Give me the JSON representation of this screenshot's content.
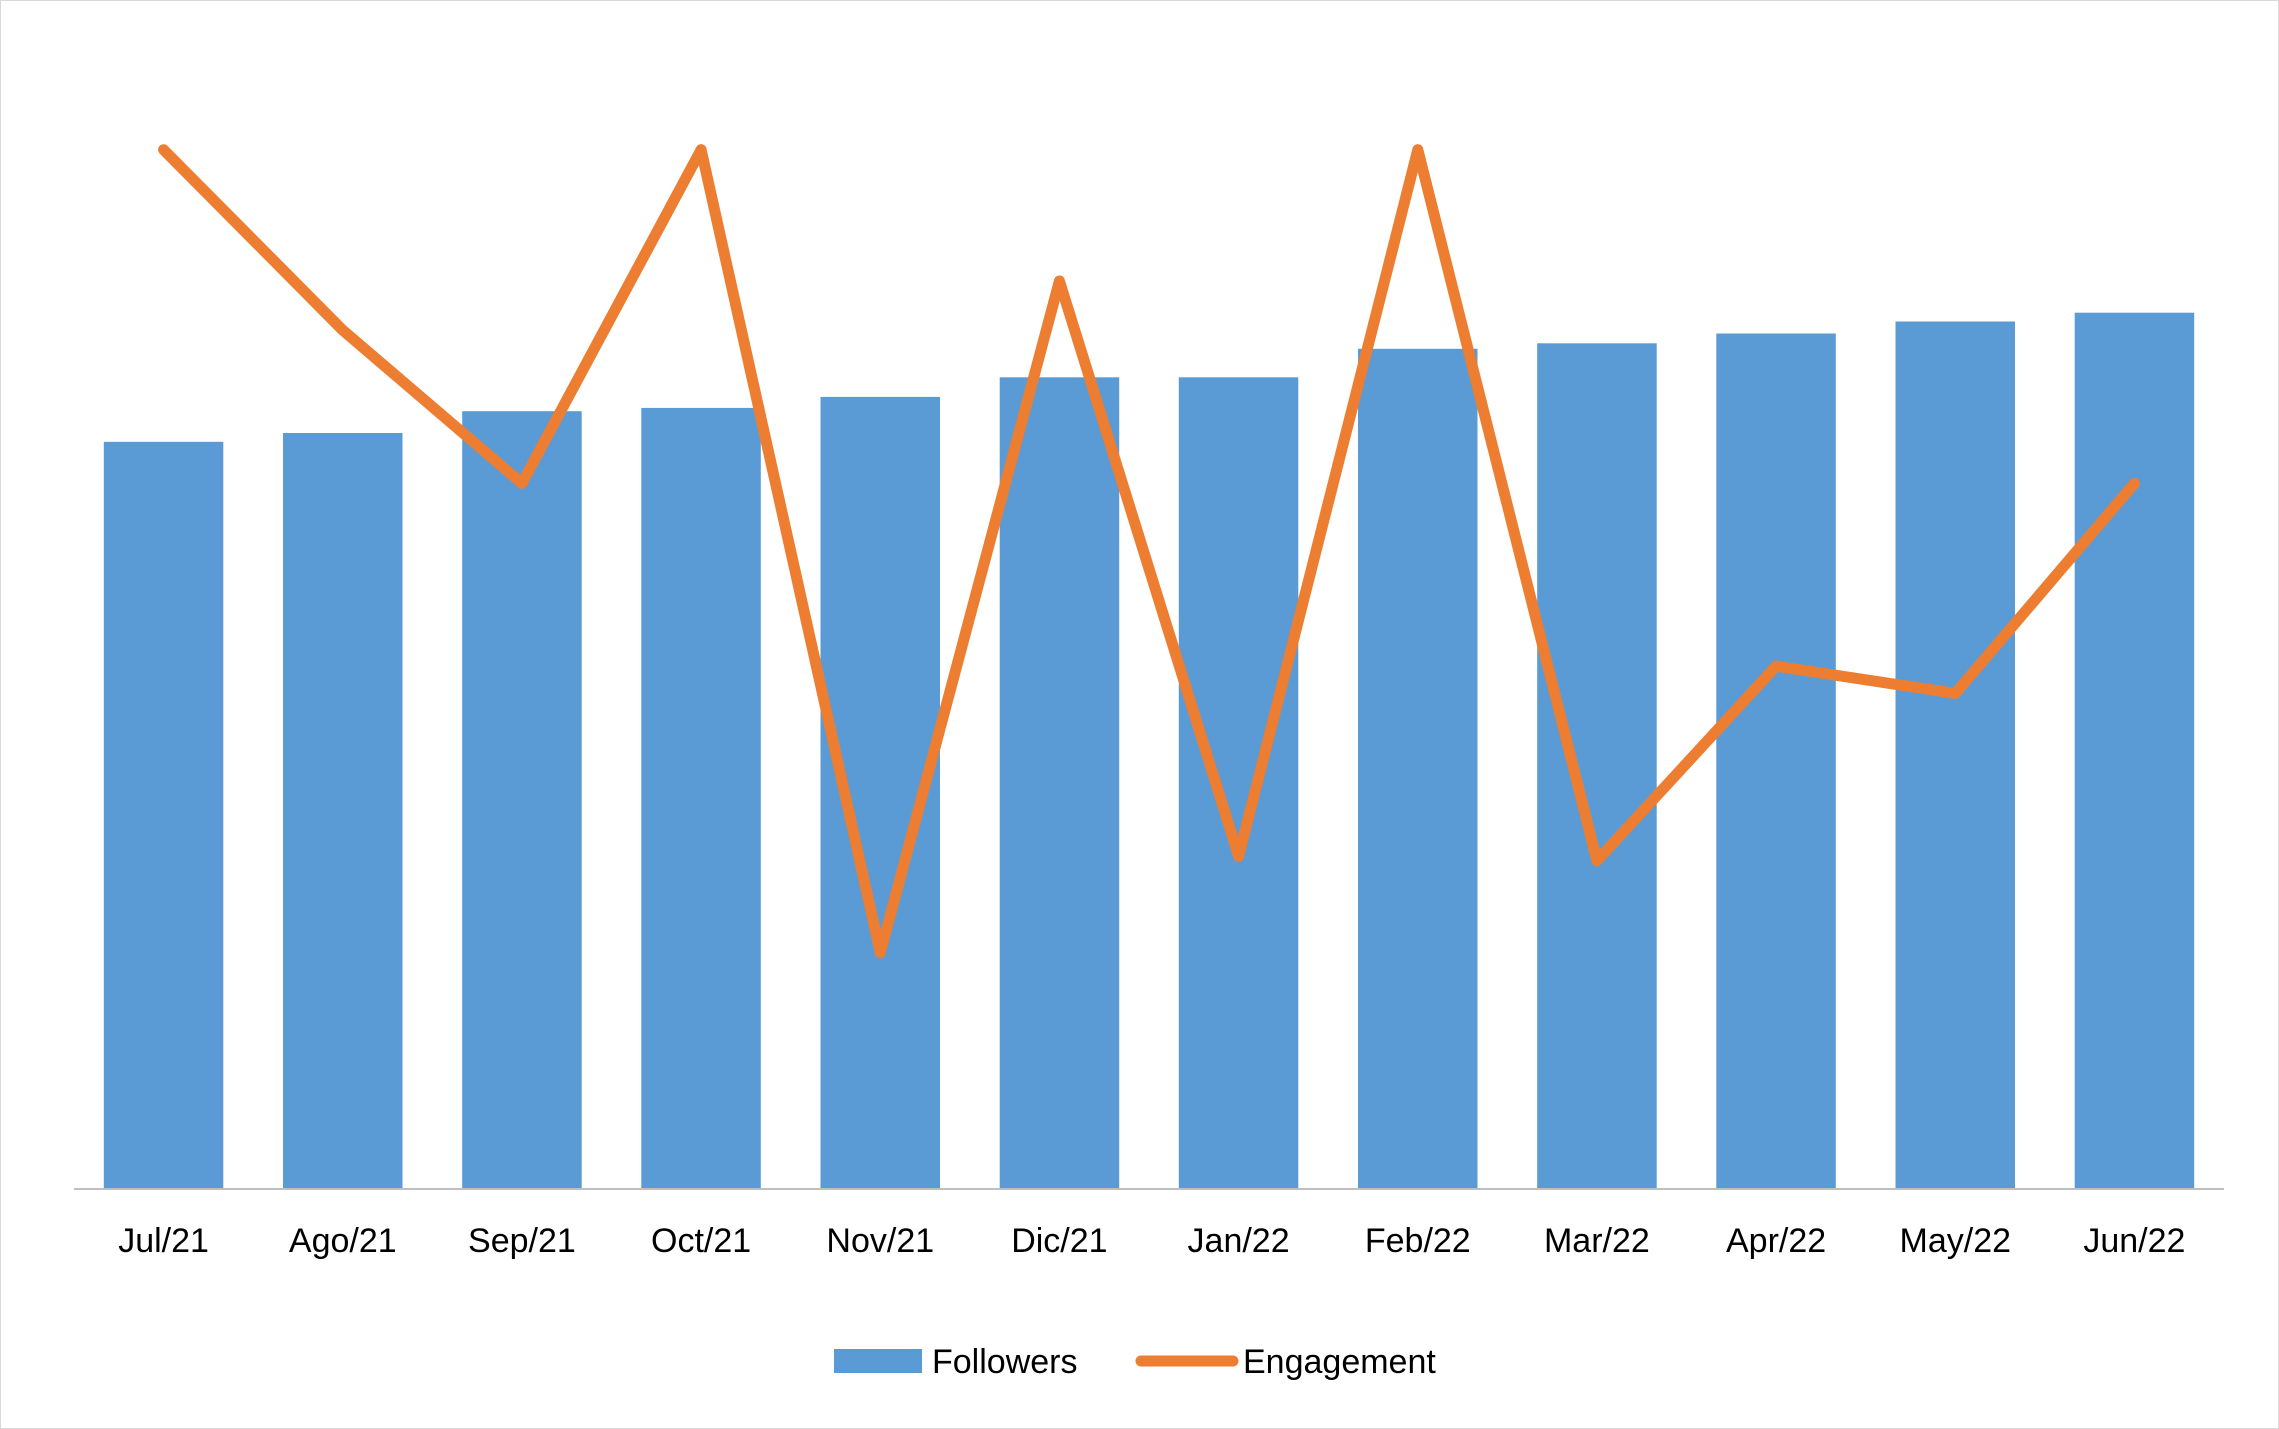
{
  "chart_data": {
    "type": "bar",
    "categories": [
      "Jul/21",
      "Ago/21",
      "Sep/21",
      "Oct/21",
      "Nov/21",
      "Dic/21",
      "Jan/22",
      "Feb/22",
      "Mar/22",
      "Apr/22",
      "May/22",
      "Jun/22"
    ],
    "series": [
      {
        "name": "Followers",
        "type": "bar",
        "axis": "left",
        "color": "#5b9bd5",
        "values": [
          68.3,
          69.1,
          71.1,
          71.4,
          72.4,
          74.2,
          74.2,
          76.8,
          77.3,
          78.2,
          79.3,
          80.1
        ]
      },
      {
        "name": "Engagement",
        "type": "line",
        "axis": "right",
        "color": "#ed7d31",
        "values": [
          95.0,
          78.5,
          64.5,
          95.0,
          21.6,
          83.0,
          30.4,
          95.0,
          30.0,
          47.8,
          45.3,
          64.5
        ]
      }
    ],
    "y_left_range": [
      0,
      100
    ],
    "y_right_range": [
      0,
      100
    ],
    "y_axis_labels_visible": false,
    "grid": false,
    "legend_position": "bottom",
    "title": "",
    "xlabel": "",
    "ylabel": ""
  }
}
